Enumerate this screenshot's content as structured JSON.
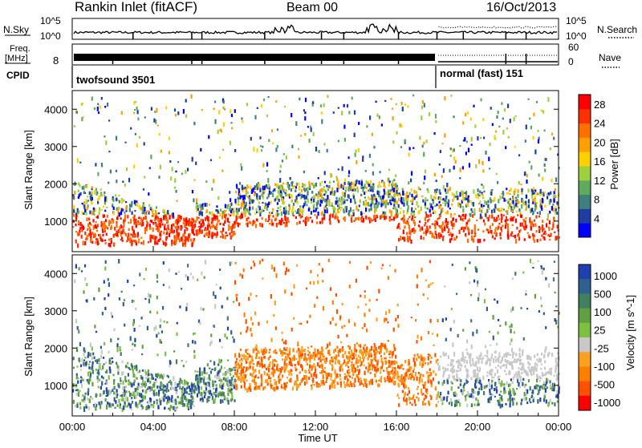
{
  "header": {
    "title": "Rankin Inlet (fitACF)",
    "beam": "Beam 00",
    "date": "16/Oct/2013"
  },
  "strip": {
    "nsky_label": "N.Sky",
    "nsky_ticks": [
      "10^5",
      "10^0"
    ],
    "nsearch_label": "N.Search",
    "nsearch_ticks": [
      "10^5",
      "10^0"
    ],
    "freq_label_1": "Freq.",
    "freq_label_2": "[MHz]",
    "freq_ticks_left": [
      "8"
    ],
    "nave_label": "Nave",
    "nave_ticks": [
      "60",
      "0"
    ],
    "cpid_label": "CPID",
    "cpid_segments": [
      {
        "name": "twofsound 3501",
        "start_hour": 0,
        "end_hour": 18
      },
      {
        "name": "normal (fast) 151",
        "start_hour": 18,
        "end_hour": 24
      }
    ]
  },
  "colors": {
    "power_scale": [
      "#0000ff",
      "#1f3fa0",
      "#3f7f7f",
      "#5faa5f",
      "#9fd03f",
      "#ffd000",
      "#ffa000",
      "#ff7000",
      "#ff3000",
      "#ff0000"
    ],
    "velocity_scale": [
      "#2040b0",
      "#306090",
      "#408060",
      "#60a040",
      "#80c040",
      "#c8c8c8",
      "#ffa020",
      "#ff8000",
      "#ff5000",
      "#ff0000"
    ]
  },
  "chart_data": [
    {
      "type": "heatmap",
      "title": "Power",
      "xlabel": "",
      "ylabel": "Slant Range [km]",
      "xlim_hours": [
        0,
        24
      ],
      "ylim": [
        180,
        4500
      ],
      "yticks": [
        "1000",
        "2000",
        "3000",
        "4000"
      ],
      "colorbar": {
        "label": "Power [dB]",
        "ticks": [
          "4",
          "8",
          "12",
          "16",
          "20",
          "24",
          "28"
        ],
        "range": [
          0,
          30
        ]
      }
    },
    {
      "type": "heatmap",
      "title": "Velocity",
      "xlabel": "Time UT",
      "ylabel": "Slant Range [km]",
      "xlim_hours": [
        0,
        24
      ],
      "ylim": [
        180,
        4500
      ],
      "xticks": [
        "00:00",
        "04:00",
        "08:00",
        "12:00",
        "16:00",
        "20:00",
        "00:00"
      ],
      "yticks": [
        "1000",
        "2000",
        "3000",
        "4000"
      ],
      "colorbar": {
        "label": "Velocity [m s^-1]",
        "ticks": [
          "1000",
          "500",
          "100",
          "25",
          "-25",
          "-100",
          "-500",
          "-1000"
        ]
      }
    }
  ]
}
